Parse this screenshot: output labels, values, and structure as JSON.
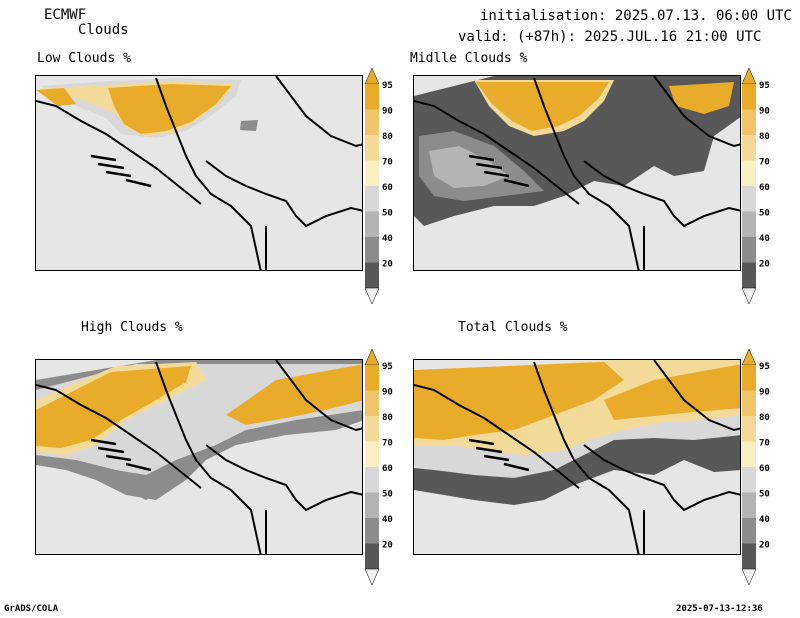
{
  "header": {
    "model": "ECMWF",
    "product": "Clouds",
    "init": "initialisation: 2025.07.13. 06:00 UTC",
    "valid": "valid: (+87h): 2025.JUL.16 21:00 UTC"
  },
  "panels": [
    {
      "title": "Low Clouds %"
    },
    {
      "title": "Midlle Clouds %"
    },
    {
      "title": "High Clouds %"
    },
    {
      "title": "Total Clouds %"
    }
  ],
  "colorbar": {
    "levels": [
      "95",
      "90",
      "80",
      "70",
      "60",
      "50",
      "40",
      "20"
    ],
    "colors": {
      "c95": "#e8ac2a",
      "c90": "#f0c468",
      "c80": "#f4da98",
      "c70": "#f8f0c0",
      "c60": "#d8d8d8",
      "c50": "#b4b4b4",
      "c40": "#8c8c8c",
      "c20": "#585858",
      "below": "#f0f0f0"
    }
  },
  "footer": {
    "left": "GrADS/COLA",
    "right": "2025-07-13-12:36"
  }
}
